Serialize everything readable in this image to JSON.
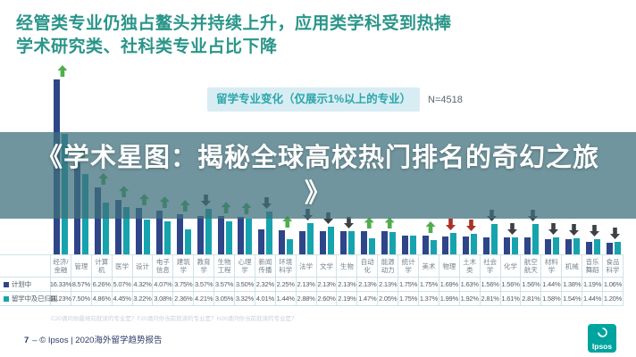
{
  "slide": {
    "heading_line1": "经管类专业仍独占鳌头并持续上升，应用类学科受到热捧",
    "heading_line2": "学术研究类、社科类专业占比下降",
    "footnote": "C20请问你最倾向就读的专业是？F20请问你当前就读的专业是？H20请问你当前就读的专业是？",
    "footer_page": "7",
    "footer_text": "–  © Ipsos | 2020海外留学趋势报告",
    "logo_text": "Ipsos"
  },
  "banner": {
    "line1": "《学术星图：揭秘全球高校热门排名的奇幻之旅",
    "line2": "》"
  },
  "chart_data": {
    "type": "bar",
    "title": "留学专业变化（仅展示1%以上的专业）",
    "sample_label": "N=4518",
    "unit": "%",
    "ylim": [
      0,
      17
    ],
    "grid": false,
    "legend_position": "table-left",
    "categories": [
      "经济/金融",
      "管理",
      "计算机",
      "医学",
      "设计",
      "电子信息",
      "建筑学",
      "教育学",
      "生物工程",
      "心理学",
      "新闻传播",
      "环境科学",
      "法学",
      "文学",
      "生物",
      "自动化",
      "能源动力",
      "统计学",
      "美术",
      "物理",
      "土木类",
      "社会学",
      "化学",
      "航空航天",
      "材料学",
      "机械",
      "音乐舞蹈",
      "食品科学"
    ],
    "series": [
      {
        "name": "计划中",
        "color": "#2e4589",
        "values": [
          16.33,
          8.57,
          6.26,
          5.07,
          4.32,
          4.07,
          3.75,
          3.57,
          3.57,
          3.5,
          2.32,
          2.25,
          2.13,
          2.13,
          2.13,
          2.13,
          2.13,
          1.75,
          1.75,
          1.69,
          1.63,
          1.56,
          1.56,
          1.56,
          1.44,
          1.38,
          1.19,
          1.06
        ]
      },
      {
        "name": "留学中及已归国",
        "color": "#16a3ae",
        "values": [
          11.23,
          7.5,
          4.86,
          4.45,
          3.22,
          3.08,
          2.36,
          4.21,
          3.05,
          3.32,
          4.01,
          1.44,
          2.88,
          2.6,
          2.19,
          1.47,
          2.05,
          1.75,
          1.37,
          1.99,
          1.92,
          2.81,
          1.61,
          2.81,
          1.58,
          1.54,
          1.44,
          1.2
        ]
      }
    ],
    "trends": [
      "up",
      "up",
      "up",
      "up",
      "up",
      "up",
      "up",
      "down",
      "up",
      "up",
      "down",
      "up",
      "down",
      "down",
      "down",
      "up",
      "up",
      "none",
      "up",
      "down-red",
      "down-red",
      "down",
      "down",
      "down",
      "down",
      "down",
      "down",
      "down"
    ],
    "trend_colors": {
      "up": "#4fae4e",
      "down": "#3d4145",
      "down-red": "#a93226"
    }
  }
}
